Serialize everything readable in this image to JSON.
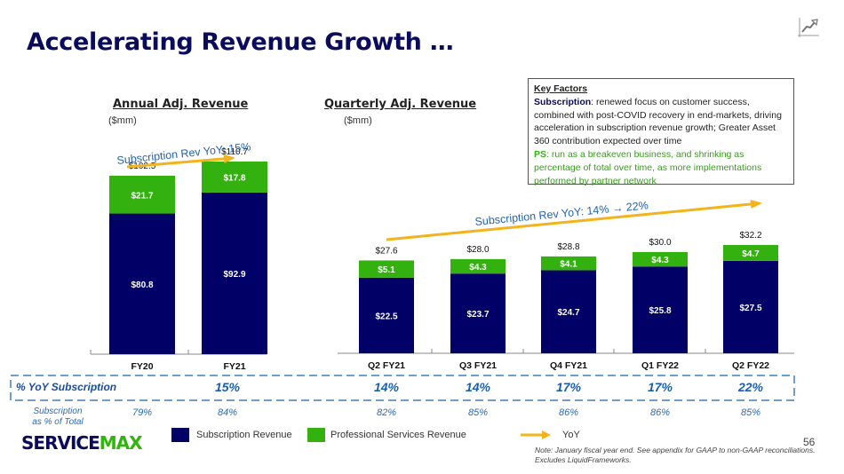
{
  "title": "Accelerating Revenue Growth …",
  "colors": {
    "subscription": "#000066",
    "professional_services": "#33b20f",
    "yoy_arrow": "#f2b31b",
    "title": "#0b0b5e",
    "yoy_text": "#1a5fb4"
  },
  "key_factors": {
    "title": "Key Factors",
    "subscription_label": "Subscription",
    "subscription_text": ": renewed focus on customer success, combined with post-COVID recovery in end-markets, driving acceleration in subscription revenue growth; Greater Asset 360 contribution expected over time",
    "ps_label": "PS",
    "ps_text": ": run as a breakeven business, and shrinking as percentage of total over time, as more implementations performed by partner network"
  },
  "chart_data": [
    {
      "type": "bar",
      "stacked": true,
      "title": "Annual Adj. Revenue",
      "unit": "($mm)",
      "categories": [
        "FY20",
        "FY21"
      ],
      "series": [
        {
          "name": "Subscription Revenue",
          "values": [
            80.8,
            92.9
          ],
          "labels": [
            "$80.8",
            "$92.9"
          ]
        },
        {
          "name": "Professional Services Revenue",
          "values": [
            21.7,
            17.8
          ],
          "labels": [
            "$21.7",
            "$17.8"
          ]
        }
      ],
      "totals": [
        102.5,
        110.7
      ],
      "total_labels": [
        "$102.5",
        "$110.7"
      ],
      "annotation": "Subscription Rev YoY: 15%"
    },
    {
      "type": "bar",
      "stacked": true,
      "title": "Quarterly Adj. Revenue",
      "unit": "($mm)",
      "categories": [
        "Q2 FY21",
        "Q3 FY21",
        "Q4 FY21",
        "Q1 FY22",
        "Q2 FY22"
      ],
      "series": [
        {
          "name": "Subscription Revenue",
          "values": [
            22.5,
            23.7,
            24.7,
            25.8,
            27.5
          ],
          "labels": [
            "$22.5",
            "$23.7",
            "$24.7",
            "$25.8",
            "$27.5"
          ]
        },
        {
          "name": "Professional Services Revenue",
          "values": [
            5.1,
            4.3,
            4.1,
            4.3,
            4.7
          ],
          "labels": [
            "$5.1",
            "$4.3",
            "$4.1",
            "$4.3",
            "$4.7"
          ]
        }
      ],
      "totals": [
        27.6,
        28.0,
        28.8,
        30.0,
        32.2
      ],
      "total_labels": [
        "$27.6",
        "$28.0",
        "$28.8",
        "$30.0",
        "$32.2"
      ],
      "annotation": "Subscription Rev YoY: 14% → 22%"
    }
  ],
  "table": {
    "yoy_label": "% YoY Subscription",
    "yoy_values": [
      "",
      "15%",
      "14%",
      "14%",
      "17%",
      "17%",
      "22%"
    ],
    "sub_pct_label_line1": "Subscription",
    "sub_pct_label_line2": "as % of Total",
    "sub_pct_values": [
      "79%",
      "84%",
      "82%",
      "85%",
      "86%",
      "86%",
      "85%"
    ]
  },
  "legend": {
    "subscription": "Subscription Revenue",
    "ps": "Professional Services Revenue",
    "yoy": "YoY"
  },
  "logo": {
    "part1": "SERVICE",
    "part2": "MAX"
  },
  "page_number": "56",
  "note_line1": "Note: January fiscal year end. See appendix for GAAP to non-GAAP reconciliations.",
  "note_line2": "Excludes LiquidFrameworks."
}
